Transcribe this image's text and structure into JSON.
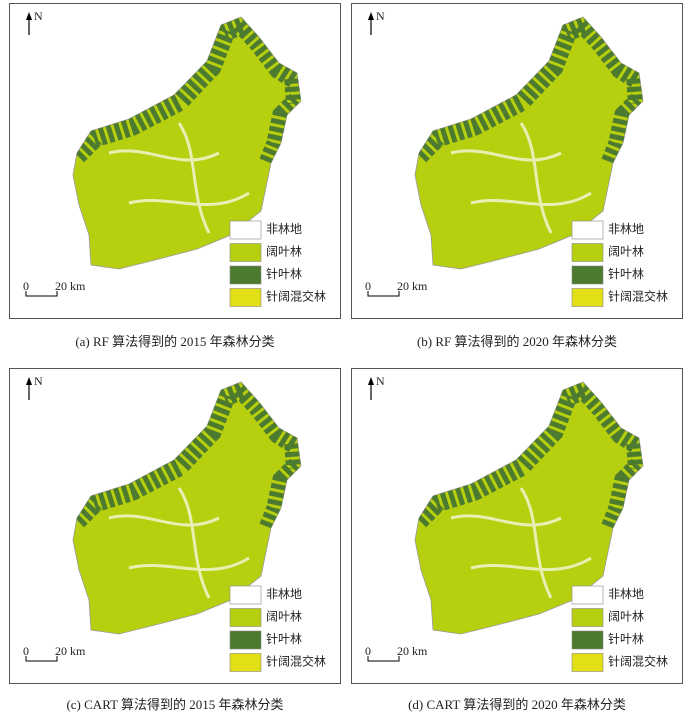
{
  "panels": [
    {
      "caption": "(a) RF 算法得到的 2015 年森林分类",
      "north": "N",
      "scale": [
        "0",
        "20 km"
      ],
      "legend": [
        {
          "label": "非林地",
          "color": "#ffffff"
        },
        {
          "label": "阔叶林",
          "color": "#b6d00f"
        },
        {
          "label": "针叶林",
          "color": "#4c7a2e"
        },
        {
          "label": "针阔混交林",
          "color": "#e2e014"
        }
      ]
    },
    {
      "caption": "(b) RF 算法得到的 2020 年森林分类",
      "north": "N",
      "scale": [
        "0",
        "20 km"
      ],
      "legend": [
        {
          "label": "非林地",
          "color": "#ffffff"
        },
        {
          "label": "阔叶林",
          "color": "#b6d00f"
        },
        {
          "label": "针叶林",
          "color": "#4c7a2e"
        },
        {
          "label": "针阔混交林",
          "color": "#e2e014"
        }
      ]
    },
    {
      "caption": "(c) CART 算法得到的 2015 年森林分类",
      "north": "N",
      "scale": [
        "0",
        "20 km"
      ],
      "legend": [
        {
          "label": "非林地",
          "color": "#ffffff"
        },
        {
          "label": "阔叶林",
          "color": "#b6d00f"
        },
        {
          "label": "针叶林",
          "color": "#4c7a2e"
        },
        {
          "label": "针阔混交林",
          "color": "#e2e014"
        }
      ]
    },
    {
      "caption": "(d) CART 算法得到的 2020 年森林分类",
      "north": "N",
      "scale": [
        "0",
        "20 km"
      ],
      "legend": [
        {
          "label": "非林地",
          "color": "#ffffff"
        },
        {
          "label": "阔叶林",
          "color": "#b6d00f"
        },
        {
          "label": "针叶林",
          "color": "#4c7a2e"
        },
        {
          "label": "针阔混交林",
          "color": "#e2e014"
        }
      ]
    }
  ]
}
